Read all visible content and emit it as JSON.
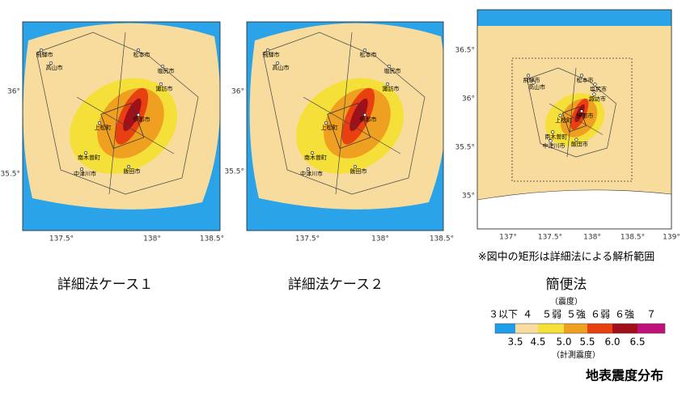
{
  "maps": [
    {
      "caption": "詳細法ケース１",
      "x_labels": [
        "137.5°",
        "138°",
        "138.5°"
      ],
      "y_labels": [
        "36°",
        "35.5°"
      ],
      "places": [
        "飛騨市",
        "高山市",
        "松本市",
        "塩尻市",
        "諏訪市",
        "上松町",
        "伊那市",
        "南木曽町",
        "中津川市",
        "飯田市"
      ]
    },
    {
      "caption": "詳細法ケース２",
      "x_labels": [
        "137.5°",
        "138°",
        "138.5°"
      ],
      "y_labels": [
        "36°",
        "35.5°"
      ],
      "places": [
        "飛騨市",
        "高山市",
        "松本市",
        "塩尻市",
        "諏訪市",
        "上松町",
        "伊那市",
        "南木曽町",
        "中津川市",
        "飯田市"
      ]
    },
    {
      "caption": "簡便法",
      "x_labels": [
        "137°",
        "137.5°",
        "138°",
        "138.5°",
        "139°"
      ],
      "y_labels": [
        "36.5°",
        "36°",
        "35.5°",
        "35°"
      ],
      "places": [
        "飛騨市",
        "高山市",
        "松本市",
        "塩尻市",
        "諏訪市",
        "上松町",
        "伊那市",
        "南木曽町",
        "中津川市",
        "飯田市"
      ]
    }
  ],
  "note": "※図中の矩形は詳細法による解析範囲",
  "legend": {
    "unit_top": "（震度）",
    "classes": [
      "３以下",
      "４",
      "５弱",
      "５強",
      "６弱",
      "６強",
      "７"
    ],
    "values": [
      "3.5",
      "4.5",
      "5.0",
      "5.5",
      "6.0",
      "6.5"
    ],
    "unit_bottom": "（計測震度）"
  },
  "title": "地表震度分布"
}
